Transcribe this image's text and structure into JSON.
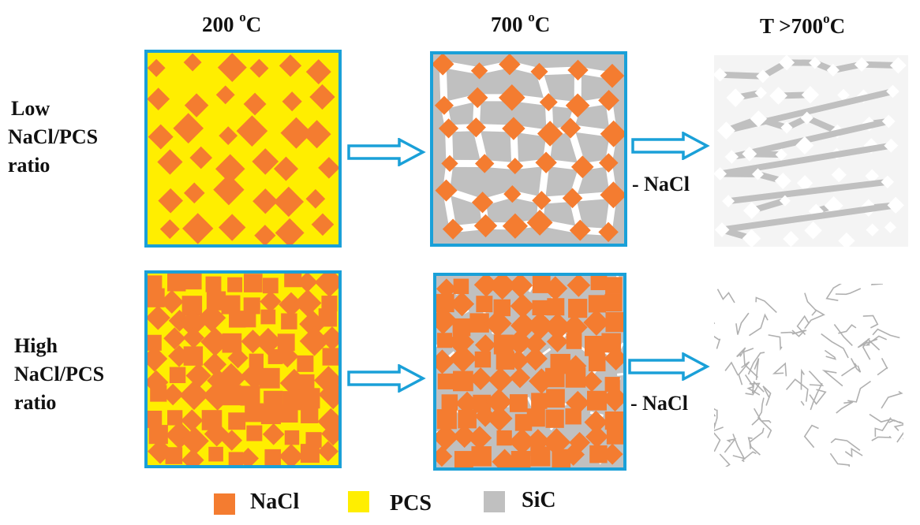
{
  "columns": [
    {
      "label": "200 ",
      "sup": "o",
      "unit": "C"
    },
    {
      "label": "700 ",
      "sup": "o",
      "unit": "C"
    },
    {
      "label": "T >700",
      "sup": "o",
      "unit": "C"
    }
  ],
  "rows": [
    {
      "lines": [
        "Low",
        "NaCl/PCS",
        " ratio"
      ]
    },
    {
      "lines": [
        "High",
        "NaCl/PCS",
        "ratio"
      ]
    }
  ],
  "step_labels": [
    "- NaCl",
    "- NaCl"
  ],
  "legend": [
    {
      "label": "NaCl",
      "color": "#f47c30"
    },
    {
      "label": "PCS",
      "color": "#ffee00"
    },
    {
      "label": "SiC",
      "color": "#c0c0c0"
    }
  ],
  "colors": {
    "frame": "#1aa0d8",
    "arrow": "#1aa0d8",
    "nacl": "#f47c30",
    "pcs": "#ffee00",
    "sic": "#c0c0c0",
    "pore": "#ffffff"
  },
  "icons": [
    "right-arrow-icon"
  ]
}
